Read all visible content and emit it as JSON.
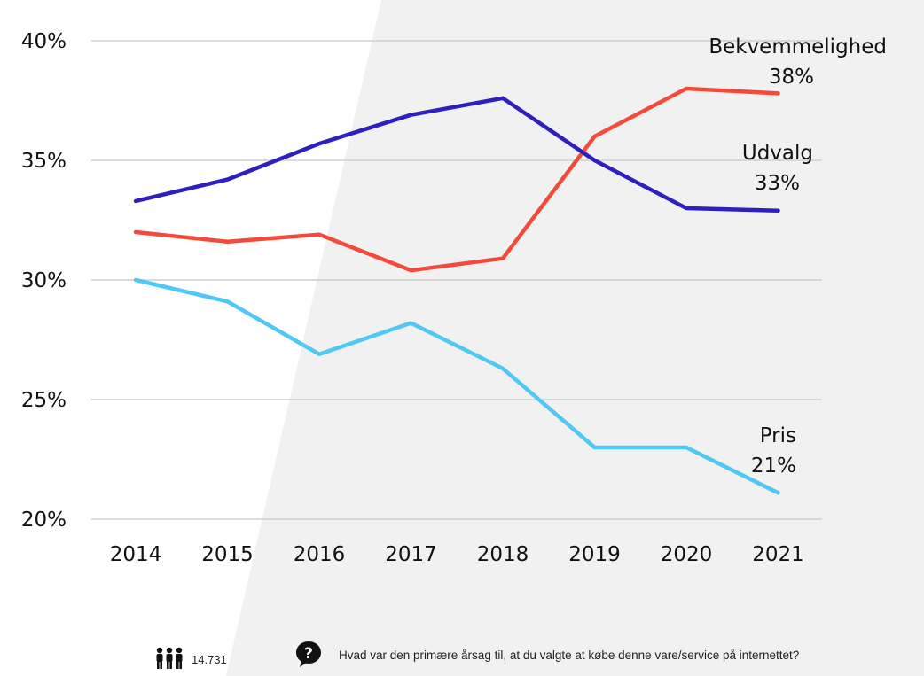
{
  "chart_data": {
    "type": "line",
    "x": [
      "2014",
      "2015",
      "2016",
      "2017",
      "2018",
      "2019",
      "2020",
      "2021"
    ],
    "ylim": [
      20,
      40
    ],
    "yticks": [
      "20%",
      "25%",
      "30%",
      "35%",
      "40%"
    ],
    "ytick_values": [
      20,
      25,
      30,
      35,
      40
    ],
    "grid": true,
    "series": [
      {
        "name": "Bekvemmelighed",
        "end_label": "38%",
        "color": "#f44a3a",
        "values": [
          32.0,
          31.6,
          31.9,
          30.4,
          30.9,
          36.0,
          38.0,
          37.8
        ]
      },
      {
        "name": "Udvalg",
        "end_label": "33%",
        "color": "#2f1fbf",
        "values": [
          33.3,
          34.2,
          35.7,
          36.9,
          37.6,
          35.0,
          33.0,
          32.9
        ]
      },
      {
        "name": "Pris",
        "end_label": "21%",
        "color": "#50c8f5",
        "values": [
          30.0,
          29.1,
          26.9,
          28.2,
          26.3,
          23.0,
          23.0,
          21.1
        ]
      }
    ]
  },
  "footer": {
    "respondents": "14.731",
    "people_icon": "people-group-icon",
    "question_icon": "question-bubble-icon",
    "question": "Hvad var den primære årsag til, at du valgte at købe denne vare/service på internettet?"
  }
}
